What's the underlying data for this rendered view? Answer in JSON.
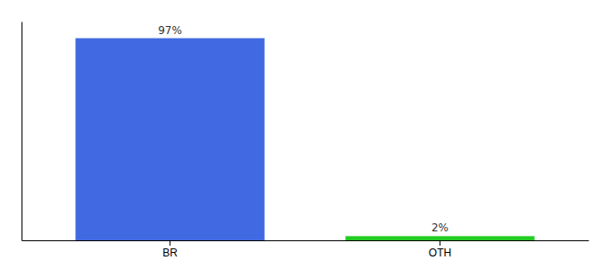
{
  "chart_data": {
    "type": "bar",
    "categories": [
      "BR",
      "OTH"
    ],
    "values": [
      97,
      2
    ],
    "value_labels": [
      "97%",
      "2%"
    ],
    "colors": [
      "#4169e1",
      "#22cc22"
    ],
    "ylim": [
      0,
      105
    ],
    "data_labels": true,
    "tick_labels": "x"
  }
}
